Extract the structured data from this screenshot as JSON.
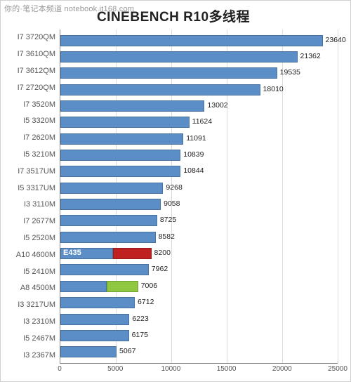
{
  "watermark": "你的·笔记本频道 notebook.it168.com",
  "chart": {
    "type": "horizontal-bar",
    "title": "CINEBENCH R10多线程",
    "xlim": [
      0,
      25000
    ],
    "xtick_step": 5000,
    "xticks": [
      "0",
      "5000",
      "10000",
      "15000",
      "20000",
      "25000"
    ],
    "grid_color": "#dddddd",
    "axis_color": "#888888",
    "background_color": "#ffffff",
    "title_fontsize": 19,
    "label_fontsize": 11,
    "default_bar_color": "#5b8ec6",
    "bars": [
      {
        "label": "I7 3720QM",
        "value": 23640,
        "color": "#5b8ec6"
      },
      {
        "label": "I7 3610QM",
        "value": 21362,
        "color": "#5b8ec6"
      },
      {
        "label": "I7 3612QM",
        "value": 19535,
        "color": "#5b8ec6"
      },
      {
        "label": "I7 2720QM",
        "value": 18010,
        "color": "#5b8ec6"
      },
      {
        "label": "I7 3520M",
        "value": 13002,
        "color": "#5b8ec6"
      },
      {
        "label": "I5 3320M",
        "value": 11624,
        "color": "#5b8ec6"
      },
      {
        "label": "I7 2620M",
        "value": 11091,
        "color": "#5b8ec6"
      },
      {
        "label": "I5 3210M",
        "value": 10839,
        "color": "#5b8ec6"
      },
      {
        "label": "I7 3517UM",
        "value": 10844,
        "color": "#5b8ec6"
      },
      {
        "label": "I5 3317UM",
        "value": 9268,
        "color": "#5b8ec6"
      },
      {
        "label": "I3 3110M",
        "value": 9058,
        "color": "#5b8ec6"
      },
      {
        "label": "I7 2677M",
        "value": 8725,
        "color": "#5b8ec6"
      },
      {
        "label": "I5 2520M",
        "value": 8582,
        "color": "#5b8ec6"
      },
      {
        "label": "A10 4600M",
        "value": 8200,
        "color": "#bf2020",
        "inner_label": "E435",
        "inner_label_color": "#ffffff",
        "underlay_color": "#5b8ec6",
        "underlay_width_frac": 0.58
      },
      {
        "label": "I5 2410M",
        "value": 7962,
        "color": "#5b8ec6"
      },
      {
        "label": "A8 4500M",
        "value": 7006,
        "color": "#8fc740",
        "underlay_color": "#5b8ec6",
        "underlay_width_frac": 0.6
      },
      {
        "label": "I3 3217UM",
        "value": 6712,
        "color": "#5b8ec6"
      },
      {
        "label": "I3 2310M",
        "value": 6223,
        "color": "#5b8ec6"
      },
      {
        "label": "I5 2467M",
        "value": 6175,
        "color": "#5b8ec6"
      },
      {
        "label": "I3 2367M",
        "value": 5067,
        "color": "#5b8ec6"
      }
    ]
  }
}
